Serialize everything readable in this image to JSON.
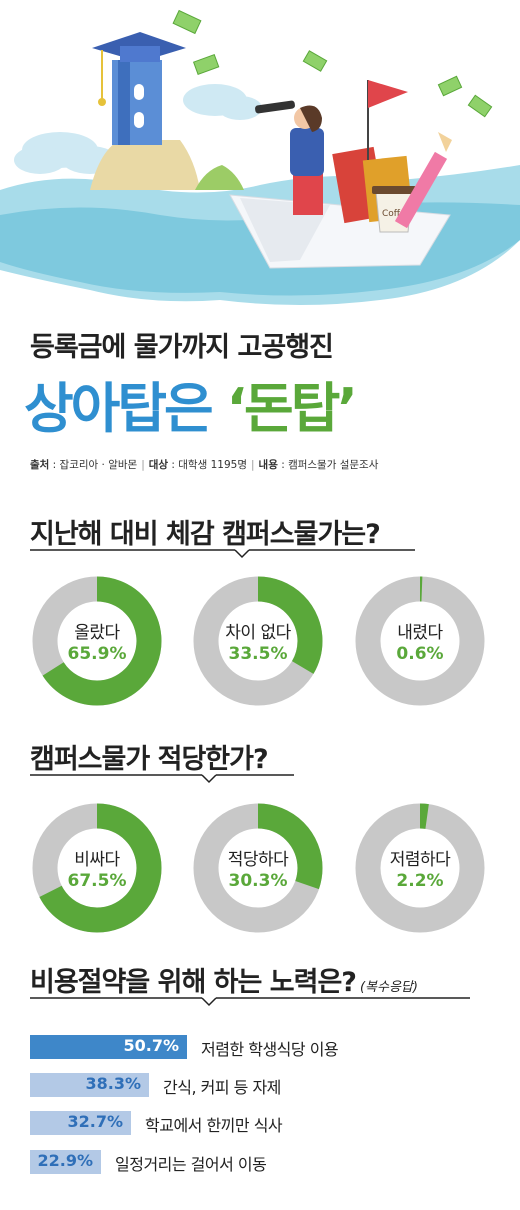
{
  "header": {
    "subtitle": "등록금에 물가까지 고공행진",
    "title_part1": "상아탑은 ",
    "title_part2": "‘돈탑’",
    "coffee_text": "Coffee",
    "meta": {
      "source_label": "출처",
      "source": " : 잡코리아 · 알바몬",
      "target_label": "대상",
      "target": " : 대학생 1195명",
      "content_label": "내용",
      "content": " : 캠퍼스물가 설문조사"
    }
  },
  "colors": {
    "green": "#5aa83a",
    "gray": "#c8c8c8",
    "blue_dark": "#3e87c9",
    "blue_light": "#b3c9e6",
    "title_blue": "#2f8fd0"
  },
  "chart_data": [
    {
      "type": "pie",
      "title": "지난해 대비 체감 캠퍼스물가는?",
      "categories": [
        "올랐다",
        "차이 없다",
        "내렸다"
      ],
      "values": [
        65.9,
        33.5,
        0.6
      ],
      "labels": [
        "65.9%",
        "33.5%",
        "0.6%"
      ]
    },
    {
      "type": "pie",
      "title": "캠퍼스물가 적당한가?",
      "categories": [
        "비싸다",
        "적당하다",
        "저렴하다"
      ],
      "values": [
        67.5,
        30.3,
        2.2
      ],
      "labels": [
        "67.5%",
        "30.3%",
        "2.2%"
      ]
    },
    {
      "type": "bar",
      "title": "비용절약을 위해 하는 노력은?",
      "note": "(복수응답)",
      "categories": [
        "저렴한 학생식당 이용",
        "간식, 커피 등 자제",
        "학교에서 한끼만 식사",
        "일정거리는 걸어서 이동"
      ],
      "values": [
        50.7,
        38.3,
        32.7,
        22.9
      ],
      "labels": [
        "50.7%",
        "38.3%",
        "32.7%",
        "22.9%"
      ]
    }
  ]
}
